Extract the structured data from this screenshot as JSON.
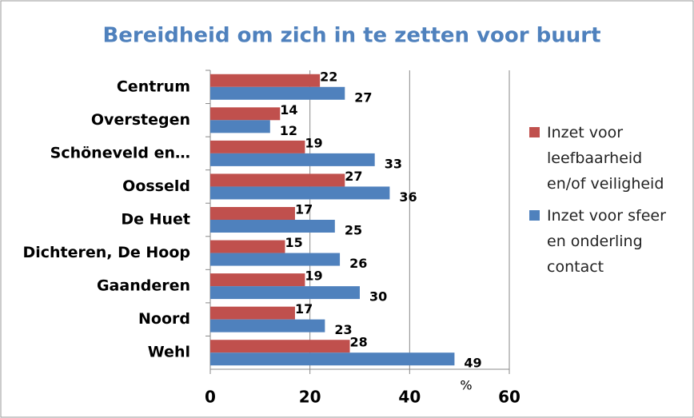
{
  "chart_data": {
    "type": "barh",
    "title": "Bereidheid om zich in te zetten voor buurt",
    "categories": [
      "Centrum",
      "Overstegen",
      "Schöneveld en…",
      "Oosseld",
      "De Huet",
      "Dichteren, De Hoop",
      "Gaanderen",
      "Noord",
      "Wehl"
    ],
    "series": [
      {
        "name": "Inzet voor leefbaarheid en/of veiligheid",
        "color": "#c0504d",
        "values": [
          22,
          14,
          19,
          27,
          17,
          15,
          19,
          17,
          28
        ]
      },
      {
        "name": "Inzet voor sfeer en onderling contact",
        "color": "#4f81bd",
        "values": [
          27,
          12,
          33,
          36,
          25,
          26,
          30,
          23,
          49
        ]
      }
    ],
    "xlabel": "%",
    "xlim": [
      0,
      60
    ],
    "xticks": [
      0,
      20,
      40,
      60
    ],
    "grid": true,
    "legend": "right"
  }
}
